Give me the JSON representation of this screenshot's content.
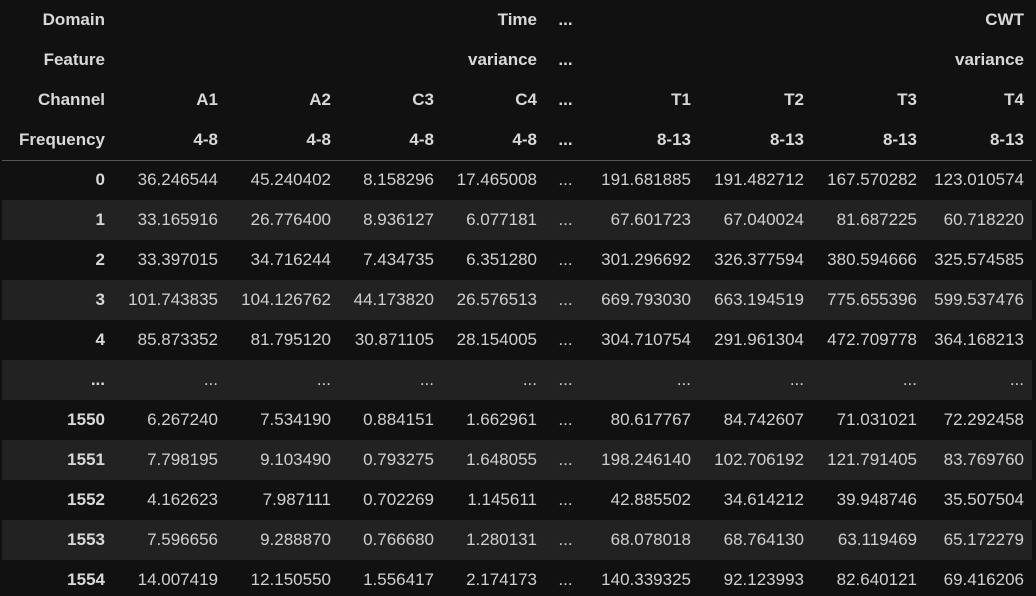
{
  "header_rows": [
    {
      "cells": [
        "Domain",
        "",
        "",
        "",
        "Time",
        "...",
        "",
        "",
        "",
        "CWT"
      ]
    },
    {
      "cells": [
        "Feature",
        "",
        "",
        "",
        "variance",
        "...",
        "",
        "",
        "",
        "variance"
      ]
    },
    {
      "cells": [
        "Channel",
        "A1",
        "A2",
        "C3",
        "C4",
        "...",
        "T1",
        "T2",
        "T3",
        "T4"
      ]
    },
    {
      "cells": [
        "Frequency",
        "4-8",
        "4-8",
        "4-8",
        "4-8",
        "...",
        "8-13",
        "8-13",
        "8-13",
        "8-13"
      ]
    }
  ],
  "rows": [
    {
      "index": "0",
      "values": [
        "36.246544",
        "45.240402",
        "8.158296",
        "17.465008",
        "...",
        "191.681885",
        "191.482712",
        "167.570282",
        "123.010574"
      ]
    },
    {
      "index": "1",
      "values": [
        "33.165916",
        "26.776400",
        "8.936127",
        "6.077181",
        "...",
        "67.601723",
        "67.040024",
        "81.687225",
        "60.718220"
      ]
    },
    {
      "index": "2",
      "values": [
        "33.397015",
        "34.716244",
        "7.434735",
        "6.351280",
        "...",
        "301.296692",
        "326.377594",
        "380.594666",
        "325.574585"
      ]
    },
    {
      "index": "3",
      "values": [
        "101.743835",
        "104.126762",
        "44.173820",
        "26.576513",
        "...",
        "669.793030",
        "663.194519",
        "775.655396",
        "599.537476"
      ]
    },
    {
      "index": "4",
      "values": [
        "85.873352",
        "81.795120",
        "30.871105",
        "28.154005",
        "...",
        "304.710754",
        "291.961304",
        "472.709778",
        "364.168213"
      ]
    },
    {
      "index": "...",
      "values": [
        "...",
        "...",
        "...",
        "...",
        "...",
        "...",
        "...",
        "...",
        "..."
      ]
    },
    {
      "index": "1550",
      "values": [
        "6.267240",
        "7.534190",
        "0.884151",
        "1.662961",
        "...",
        "80.617767",
        "84.742607",
        "71.031021",
        "72.292458"
      ]
    },
    {
      "index": "1551",
      "values": [
        "7.798195",
        "9.103490",
        "0.793275",
        "1.648055",
        "...",
        "198.246140",
        "102.706192",
        "121.791405",
        "83.769760"
      ]
    },
    {
      "index": "1552",
      "values": [
        "4.162623",
        "7.987111",
        "0.702269",
        "1.145611",
        "...",
        "42.885502",
        "34.614212",
        "39.948746",
        "35.507504"
      ]
    },
    {
      "index": "1553",
      "values": [
        "7.596656",
        "9.288870",
        "0.766680",
        "1.280131",
        "...",
        "68.078018",
        "68.764130",
        "63.119469",
        "65.172279"
      ]
    },
    {
      "index": "1554",
      "values": [
        "14.007419",
        "12.150550",
        "1.556417",
        "2.174173",
        "...",
        "140.339325",
        "92.123993",
        "82.640121",
        "69.416206"
      ]
    }
  ]
}
